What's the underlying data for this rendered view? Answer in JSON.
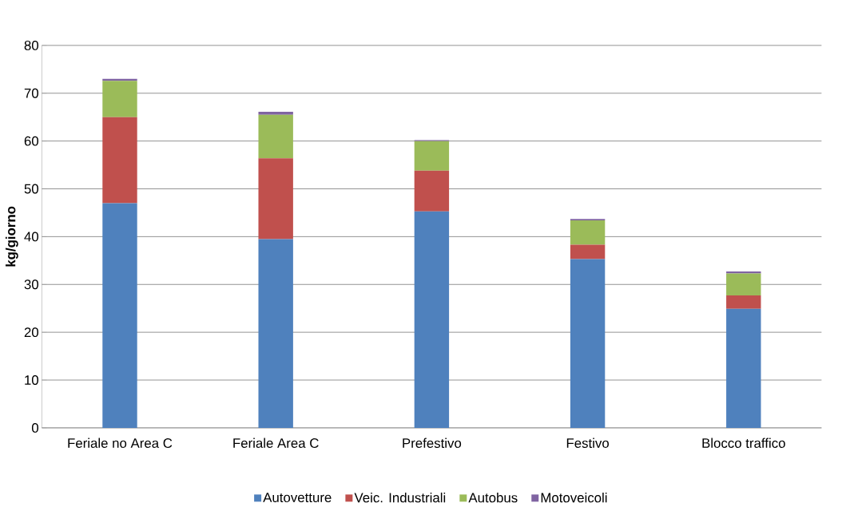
{
  "chart_data": {
    "type": "bar",
    "stacked": true,
    "ylabel": "kg/giorno",
    "categories": [
      "Feriale no Area C",
      "Feriale Area C",
      "Prefestivo",
      "Festivo",
      "Blocco traffico"
    ],
    "series": [
      {
        "name": "Autovetture",
        "color": "#4f81bd",
        "values": [
          47.0,
          39.5,
          45.3,
          35.3,
          24.9
        ]
      },
      {
        "name": "Veic. Industriali",
        "color": "#c0504d",
        "values": [
          18.0,
          16.9,
          8.5,
          3.0,
          2.8
        ]
      },
      {
        "name": "Autobus",
        "color": "#9bbb59",
        "values": [
          7.6,
          9.1,
          6.2,
          5.1,
          4.6
        ]
      },
      {
        "name": "Motoveicoli",
        "color": "#8064a2",
        "values": [
          0.4,
          0.6,
          0.2,
          0.3,
          0.4
        ]
      }
    ],
    "ylim": [
      0,
      80
    ],
    "yticks": [
      0,
      10,
      20,
      30,
      40,
      50,
      60,
      70,
      80
    ],
    "grid": "y",
    "legend": "bottom"
  }
}
